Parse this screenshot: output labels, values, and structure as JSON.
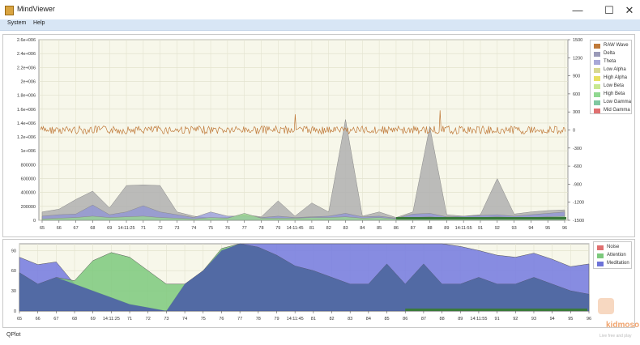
{
  "window": {
    "title": "MindViewer",
    "minimize": "—",
    "maximize": "☐",
    "close": "✕"
  },
  "menu": {
    "items": [
      {
        "label": "System"
      },
      {
        "label": "Help"
      }
    ]
  },
  "footer": {
    "text": "QPlot"
  },
  "watermark": {
    "text": "kidmoso",
    "subtext": "Live free and play"
  },
  "colors": {
    "raw": "#c07a3a",
    "gray": "#b8b8b8",
    "blue": "#6d73d8",
    "green": "#7cc97c",
    "bg": "#f7f7ea"
  },
  "chart_data": [
    {
      "type": "area",
      "left_ticks": [
        "2.6e+006",
        "2.4e+006",
        "2.2e+006",
        "2e+006",
        "1.8e+006",
        "1.6e+006",
        "1.4e+006",
        "1.2e+006",
        "1e+006",
        "800000",
        "600000",
        "400000",
        "200000",
        "0"
      ],
      "right_ticks": [
        "1500",
        "1200",
        "900",
        "600",
        "300",
        "0",
        "-300",
        "-600",
        "-900",
        "-1200",
        "-1500"
      ],
      "x_ticks": [
        "65",
        "66",
        "67",
        "68",
        "69",
        "14:11:25",
        "71",
        "72",
        "73",
        "74",
        "75",
        "76",
        "77",
        "78",
        "79",
        "14:11:45",
        "81",
        "82",
        "83",
        "84",
        "85",
        "86",
        "87",
        "88",
        "89",
        "14:11:55",
        "91",
        "92",
        "93",
        "94",
        "95",
        "96"
      ],
      "ylim": [
        0,
        2600000
      ],
      "right_ylim": [
        -1500,
        1500
      ],
      "grid": true,
      "legend_placement": "top-right",
      "legend": [
        {
          "name": "RAW Wave",
          "color": "#c07a3a"
        },
        {
          "name": "Delta",
          "color": "#9a9ab8"
        },
        {
          "name": "Theta",
          "color": "#a8a8d8"
        },
        {
          "name": "Low Alpha",
          "color": "#d8d890"
        },
        {
          "name": "High Alpha",
          "color": "#e8e060"
        },
        {
          "name": "Low Beta",
          "color": "#c8e890"
        },
        {
          "name": "High Beta",
          "color": "#90d890"
        },
        {
          "name": "Low Gamma",
          "color": "#80c8a0"
        },
        {
          "name": "Mid Gamma",
          "color": "#e07070"
        }
      ],
      "series": [
        {
          "name": "Delta",
          "values": [
            120000,
            160000,
            300000,
            420000,
            180000,
            500000,
            510000,
            500000,
            120000,
            60000,
            30000,
            40000,
            80000,
            50000,
            280000,
            60000,
            250000,
            120000,
            1450000,
            60000,
            120000,
            40000,
            120000,
            1350000,
            80000,
            60000,
            80000,
            600000,
            90000,
            120000,
            140000,
            150000
          ]
        },
        {
          "name": "Theta",
          "values": [
            60000,
            80000,
            90000,
            220000,
            80000,
            120000,
            210000,
            120000,
            80000,
            40000,
            120000,
            60000,
            60000,
            40000,
            60000,
            40000,
            50000,
            60000,
            100000,
            50000,
            60000,
            30000,
            90000,
            100000,
            50000,
            60000,
            70000,
            80000,
            60000,
            80000,
            100000,
            120000
          ]
        },
        {
          "name": "Low Beta",
          "values": [
            20000,
            30000,
            40000,
            60000,
            40000,
            50000,
            60000,
            40000,
            30000,
            20000,
            40000,
            30000,
            100000,
            30000,
            30000,
            30000,
            40000,
            40000,
            50000,
            30000,
            40000,
            20000,
            40000,
            50000,
            30000,
            40000,
            40000,
            50000,
            40000,
            40000,
            50000,
            60000
          ]
        }
      ]
    },
    {
      "type": "area",
      "y_ticks": [
        "90",
        "60",
        "30",
        "0"
      ],
      "x_ticks": [
        "65",
        "66",
        "67",
        "68",
        "69",
        "14:11:25",
        "71",
        "72",
        "73",
        "74",
        "75",
        "76",
        "77",
        "78",
        "79",
        "14:11:45",
        "81",
        "82",
        "83",
        "84",
        "85",
        "86",
        "87",
        "88",
        "89",
        "14:11:55",
        "91",
        "92",
        "93",
        "94",
        "95",
        "96"
      ],
      "ylim": [
        0,
        100
      ],
      "grid": true,
      "legend_placement": "top-right",
      "legend": [
        {
          "name": "Noise",
          "color": "#e07070"
        },
        {
          "name": "Attention",
          "color": "#7cc97c"
        },
        {
          "name": "Meditation",
          "color": "#6d73d8"
        }
      ],
      "series": [
        {
          "name": "Meditation",
          "values": [
            80,
            69,
            73,
            40,
            30,
            20,
            10,
            5,
            0,
            40,
            60,
            90,
            100,
            100,
            100,
            100,
            100,
            100,
            100,
            100,
            100,
            100,
            100,
            100,
            96,
            90,
            83,
            80,
            86,
            77,
            66,
            70
          ]
        },
        {
          "name": "Attention",
          "values": [
            57,
            40,
            50,
            45,
            75,
            87,
            80,
            60,
            40,
            40,
            60,
            93,
            100,
            95,
            83,
            67,
            60,
            50,
            40,
            40,
            70,
            40,
            70,
            40,
            40,
            50,
            40,
            40,
            50,
            40,
            30,
            25
          ]
        },
        {
          "name": "Noise",
          "values": [
            0,
            0,
            0,
            0,
            0,
            0,
            0,
            0,
            0,
            0,
            0,
            0,
            0,
            0,
            0,
            0,
            0,
            0,
            0,
            0,
            0,
            0,
            0,
            0,
            0,
            0,
            0,
            0,
            0,
            0,
            0,
            0
          ]
        }
      ]
    }
  ]
}
